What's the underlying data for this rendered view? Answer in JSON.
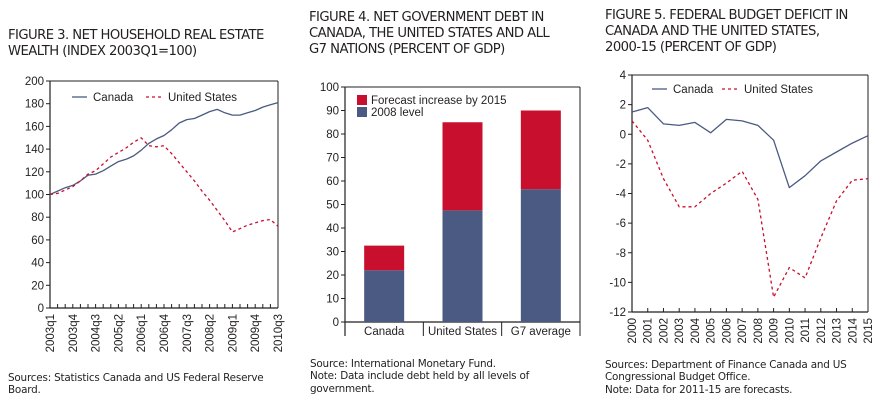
{
  "colors": {
    "canada_line": "#4a5a82",
    "us_line": "#c8102e",
    "bar_2008": "#4a5a82",
    "bar_forecast": "#c8102e",
    "axis": "#231f20"
  },
  "chart_data": [
    {
      "id": "figure3",
      "type": "line",
      "title": "FIGURE 3. NET HOUSEHOLD REAL ESTATE WEALTH (INDEX 2003Q1=100)",
      "xlabel": "",
      "ylabel": "",
      "ylim": [
        0,
        200
      ],
      "yticks": [
        0,
        20,
        40,
        60,
        80,
        100,
        120,
        140,
        160,
        180,
        200
      ],
      "x": [
        "2003q1",
        "2003q2",
        "2003q3",
        "2003q4",
        "2004q1",
        "2004q2",
        "2004q3",
        "2004q4",
        "2005q1",
        "2005q2",
        "2005q3",
        "2005q4",
        "2006q1",
        "2006q2",
        "2006q3",
        "2006q4",
        "2007q1",
        "2007q2",
        "2007q3",
        "2007q4",
        "2008q1",
        "2008q2",
        "2008q3",
        "2008q4",
        "2009q1",
        "2009q2",
        "2009q3",
        "2009q4",
        "2010q1",
        "2010q2",
        "2010q3"
      ],
      "xtick_labels": [
        "2003q1",
        "2003q4",
        "2004q3",
        "2005q2",
        "2006q1",
        "2006q4",
        "2007q3",
        "2008q2",
        "2009q1",
        "2009q4",
        "2010q3"
      ],
      "grid": false,
      "legend_position": "top-left",
      "series": [
        {
          "name": "Canada",
          "style": "solid",
          "values": [
            100,
            103,
            106,
            108,
            112,
            117,
            118,
            121,
            125,
            129,
            131,
            134,
            139,
            145,
            149,
            152,
            157,
            163,
            166,
            167,
            170,
            173,
            175,
            172,
            170,
            170,
            172,
            174,
            177,
            179,
            181
          ]
        },
        {
          "name": "United States",
          "style": "dashed",
          "values": [
            100,
            101,
            104,
            107,
            112,
            118,
            121,
            127,
            133,
            137,
            141,
            146,
            150,
            143,
            142,
            143,
            136,
            128,
            120,
            112,
            103,
            95,
            86,
            77,
            67,
            70,
            73,
            75,
            77,
            78,
            72
          ]
        }
      ],
      "source": "Sources: Statistics Canada and US Federal Reserve Board."
    },
    {
      "id": "figure4",
      "type": "bar",
      "stacked": true,
      "title": "FIGURE 4. NET GOVERNMENT DEBT IN CANADA, THE UNITED STATES AND ALL G7 NATIONS (PERCENT OF GDP)",
      "xlabel": "",
      "ylabel": "",
      "ylim": [
        0,
        100
      ],
      "yticks": [
        0,
        10,
        20,
        30,
        40,
        50,
        60,
        70,
        80,
        90,
        100
      ],
      "categories": [
        "Canada",
        "United States",
        "G7 average"
      ],
      "grid": false,
      "legend_position": "top-left",
      "series": [
        {
          "name": "2008 level",
          "values": [
            22,
            47.5,
            56.5
          ]
        },
        {
          "name": "Forecast increase by 2015",
          "values": [
            10.5,
            37.5,
            33.5
          ]
        }
      ],
      "legend_order": [
        "Forecast increase by 2015",
        "2008 level"
      ],
      "source": "Source: International Monetary Fund.",
      "note": "Note: Data include debt held by all levels of government."
    },
    {
      "id": "figure5",
      "type": "line",
      "title": "FIGURE 5. FEDERAL BUDGET DEFICIT IN CANADA AND THE UNITED STATES, 2000-15 (PERCENT OF GDP)",
      "xlabel": "",
      "ylabel": "",
      "ylim": [
        -12,
        4
      ],
      "yticks": [
        -12,
        -10,
        -8,
        -6,
        -4,
        -2,
        0,
        2,
        4
      ],
      "x": [
        "2000",
        "2001",
        "2002",
        "2003",
        "2004",
        "2005",
        "2006",
        "2007",
        "2008",
        "2009",
        "2010",
        "2011",
        "2012",
        "2013",
        "2014",
        "2015"
      ],
      "xtick_labels": [
        "2000",
        "2001",
        "2002",
        "2003",
        "2004",
        "2005",
        "2006",
        "2007",
        "2008",
        "2009",
        "2010",
        "2011",
        "2012",
        "2013",
        "2014",
        "2015"
      ],
      "grid": false,
      "legend_position": "top-left",
      "series": [
        {
          "name": "Canada",
          "style": "solid",
          "values": [
            1.5,
            1.8,
            0.7,
            0.6,
            0.8,
            0.1,
            1.0,
            0.9,
            0.6,
            -0.4,
            -3.6,
            -2.8,
            -1.8,
            -1.2,
            -0.6,
            -0.1
          ]
        },
        {
          "name": "United States",
          "style": "dashed",
          "values": [
            0.9,
            -0.4,
            -3.0,
            -4.9,
            -4.9,
            -4.0,
            -3.3,
            -2.5,
            -4.4,
            -11.0,
            -9.0,
            -9.7,
            -7.0,
            -4.5,
            -3.1,
            -3.0
          ]
        }
      ],
      "source": "Sources: Department of Finance Canada and US Congressional Budget Office.",
      "note": "Note: Data for 2011-15 are forecasts."
    }
  ],
  "text": {
    "fig3_title_1": "FIGURE 3. NET HOUSEHOLD REAL ESTATE",
    "fig3_title_2": "WEALTH (INDEX 2003Q1=100)",
    "fig3_note_1": "Sources: Statistics Canada and US Federal Reserve",
    "fig3_note_2": "Board.",
    "fig4_title_1": "FIGURE 4. NET GOVERNMENT DEBT IN",
    "fig4_title_2": "CANADA, THE UNITED STATES AND ALL",
    "fig4_title_3": "G7 NATIONS (PERCENT OF GDP)",
    "fig4_note_1": "Source: International Monetary Fund.",
    "fig4_note_2": "Note: Data include debt held by all levels of",
    "fig4_note_3": "government.",
    "fig5_title_1": "FIGURE 5. FEDERAL BUDGET DEFICIT IN",
    "fig5_title_2": "CANADA AND THE UNITED STATES,",
    "fig5_title_3": "2000-15 (PERCENT OF GDP)",
    "fig5_note_1": "Sources: Department of Finance Canada and US",
    "fig5_note_2": "Congressional Budget Office.",
    "fig5_note_3": "Note: Data for 2011-15 are forecasts."
  }
}
